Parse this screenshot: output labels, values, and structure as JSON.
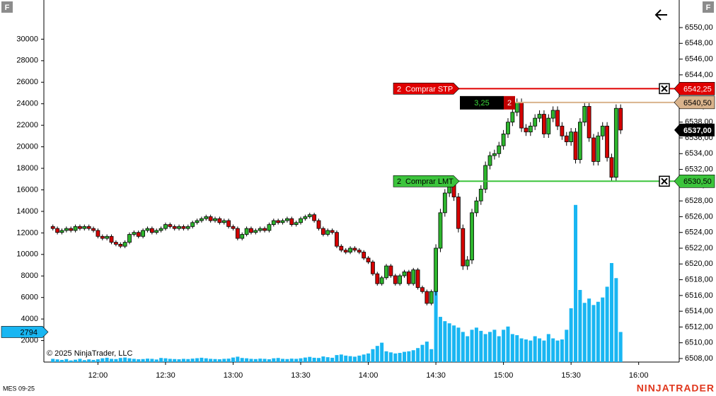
{
  "chart_data": {
    "type": "candlestick",
    "instrument": "MES 09-25",
    "copyright": "© 2025 NinjaTrader, LLC",
    "brand": "NINJATRADER",
    "buttons": [
      "F",
      "F"
    ],
    "up_color": "#2db52d",
    "down_color": "#d40000",
    "volume_color": "#19b6f2",
    "x": [
      "11:40",
      "11:42",
      "11:44",
      "11:46",
      "11:48",
      "11:50",
      "11:52",
      "11:54",
      "11:56",
      "11:58",
      "12:00",
      "12:02",
      "12:04",
      "12:06",
      "12:08",
      "12:10",
      "12:12",
      "12:14",
      "12:16",
      "12:18",
      "12:20",
      "12:22",
      "12:24",
      "12:26",
      "12:28",
      "12:30",
      "12:32",
      "12:34",
      "12:36",
      "12:38",
      "12:40",
      "12:42",
      "12:44",
      "12:46",
      "12:48",
      "12:50",
      "12:52",
      "12:54",
      "12:56",
      "12:58",
      "13:00",
      "13:02",
      "13:04",
      "13:06",
      "13:08",
      "13:10",
      "13:12",
      "13:14",
      "13:16",
      "13:18",
      "13:20",
      "13:22",
      "13:24",
      "13:26",
      "13:28",
      "13:30",
      "13:32",
      "13:34",
      "13:36",
      "13:38",
      "13:40",
      "13:42",
      "13:44",
      "13:46",
      "13:48",
      "13:50",
      "13:52",
      "13:54",
      "13:56",
      "13:58",
      "14:00",
      "14:02",
      "14:04",
      "14:06",
      "14:08",
      "14:10",
      "14:12",
      "14:14",
      "14:16",
      "14:18",
      "14:20",
      "14:22",
      "14:24",
      "14:26",
      "14:28",
      "14:30",
      "14:32",
      "14:34",
      "14:36",
      "14:38",
      "14:40",
      "14:42",
      "14:44",
      "14:46",
      "14:48",
      "14:50",
      "14:52",
      "14:54",
      "14:56",
      "14:58",
      "15:00",
      "15:02",
      "15:04",
      "15:06",
      "15:08",
      "15:10",
      "15:12",
      "15:14",
      "15:16",
      "15:18",
      "15:20",
      "15:22",
      "15:24",
      "15:26",
      "15:28",
      "15:30",
      "15:32",
      "15:34",
      "15:36",
      "15:38",
      "15:40",
      "15:42",
      "15:44",
      "15:46",
      "15:48",
      "15:50",
      "15:52"
    ],
    "open": [
      6524.75,
      6524.5,
      6524,
      6524.25,
      6524.5,
      6524.25,
      6524.75,
      6524.5,
      6524.75,
      6524.5,
      6524.25,
      6523.5,
      6523.25,
      6523.5,
      6522.75,
      6522.5,
      6522.25,
      6522.75,
      6523.75,
      6524,
      6523.5,
      6524.25,
      6524.5,
      6524,
      6524.25,
      6524.5,
      6525,
      6524.75,
      6524.5,
      6524.75,
      6524.5,
      6524.75,
      6525.25,
      6525.5,
      6525.75,
      6526,
      6525.5,
      6525.75,
      6525.25,
      6525.5,
      6524.75,
      6524.5,
      6523.25,
      6523.75,
      6524.5,
      6524,
      6524.25,
      6524.5,
      6524.25,
      6525,
      6525.5,
      6525.25,
      6525.5,
      6525.75,
      6525,
      6525.25,
      6525.75,
      6526,
      6526.25,
      6525.5,
      6524.5,
      6523.75,
      6524.25,
      6524,
      6522.25,
      6521.75,
      6521.5,
      6522,
      6521.75,
      6521.5,
      6520.75,
      6520.25,
      6518.75,
      6517.5,
      6518.25,
      6519.75,
      6518.5,
      6517.5,
      6518.5,
      6519,
      6517.5,
      6519.25,
      6517,
      6516.5,
      6515,
      6516.5,
      6522,
      6526.5,
      6529,
      6530.25,
      6528.5,
      6524.5,
      6519.75,
      6520.5,
      6526.5,
      6528,
      6529.5,
      6532.5,
      6533.75,
      6534,
      6535,
      6536.5,
      6538,
      6539.25,
      6540.5,
      6537.25,
      6536.75,
      6537.5,
      6538.5,
      6539,
      6536.5,
      6538.5,
      6539.5,
      6537.5,
      6536.25,
      6535.5,
      6536.75,
      6533.25,
      6538,
      6540,
      6536,
      6533,
      6536.25,
      6537.5,
      6533.5,
      6531,
      6539.75
    ],
    "high": [
      6525,
      6524.75,
      6524.5,
      6524.75,
      6524.75,
      6525,
      6525,
      6525,
      6525,
      6524.75,
      6524.5,
      6523.75,
      6523.75,
      6523.75,
      6523,
      6522.75,
      6523,
      6524,
      6524.25,
      6524.25,
      6524.5,
      6524.75,
      6524.75,
      6524.5,
      6524.75,
      6525.25,
      6525.25,
      6525,
      6525,
      6525,
      6525,
      6525.5,
      6525.75,
      6526,
      6526.25,
      6526.25,
      6526,
      6526,
      6525.75,
      6525.75,
      6525,
      6524.75,
      6524,
      6524.75,
      6524.75,
      6524.5,
      6524.75,
      6524.75,
      6525.25,
      6525.75,
      6525.75,
      6525.75,
      6526,
      6526,
      6525.5,
      6526,
      6526.25,
      6526.5,
      6526.5,
      6525.75,
      6524.75,
      6524.5,
      6524.5,
      6524.25,
      6522.5,
      6522,
      6522.25,
      6522.25,
      6522,
      6521.75,
      6521,
      6520.5,
      6519,
      6518.5,
      6520,
      6520,
      6518.75,
      6518.75,
      6519.25,
      6519.25,
      6519.5,
      6519.5,
      6517.25,
      6516.75,
      6516.75,
      6522.5,
      6527,
      6529.5,
      6530.75,
      6530.75,
      6529,
      6525,
      6521,
      6527,
      6528.5,
      6530,
      6533,
      6534.25,
      6534.5,
      6535.5,
      6537,
      6538.5,
      6539.75,
      6541,
      6541,
      6537.75,
      6538,
      6539,
      6539.5,
      6539.5,
      6539,
      6540,
      6540,
      6538,
      6536.75,
      6537.25,
      6537.25,
      6538.5,
      6540.5,
      6540.5,
      6536.5,
      6536.75,
      6538,
      6538,
      6534,
      6540.25,
      6540.25
    ],
    "low": [
      6524.25,
      6523.75,
      6523.75,
      6524,
      6524,
      6524,
      6524.25,
      6524.25,
      6524.25,
      6524,
      6523.25,
      6523,
      6523,
      6522.5,
      6522.25,
      6522,
      6522,
      6522.5,
      6523.5,
      6523.25,
      6523.25,
      6524,
      6523.75,
      6523.75,
      6524,
      6524.25,
      6524.5,
      6524.25,
      6524.25,
      6524.25,
      6524.25,
      6524.5,
      6525,
      6525.25,
      6525.5,
      6525.25,
      6525.25,
      6525,
      6525,
      6524.5,
      6524.25,
      6523,
      6523,
      6523.5,
      6523.75,
      6523.75,
      6524,
      6524,
      6524,
      6524.75,
      6525,
      6525,
      6525.25,
      6524.75,
      6524.75,
      6525,
      6525.5,
      6525.75,
      6525.25,
      6524.25,
      6523.5,
      6523.5,
      6523.75,
      6522,
      6521.5,
      6521.25,
      6521.25,
      6521.5,
      6521.25,
      6520.5,
      6520,
      6518.5,
      6517.25,
      6517.25,
      6518,
      6518.25,
      6517.25,
      6517.25,
      6518.25,
      6517.25,
      6517.25,
      6516.75,
      6516.25,
      6514.75,
      6514.75,
      6516,
      6521.5,
      6526,
      6528.5,
      6528,
      6524,
      6519.25,
      6519.25,
      6520,
      6526,
      6527.5,
      6529,
      6532,
      6533.25,
      6533.5,
      6534.5,
      6536,
      6537.5,
      6538.75,
      6536.75,
      6536.25,
      6536.25,
      6537,
      6538,
      6536,
      6536,
      6538,
      6537,
      6535.75,
      6535,
      6535,
      6532.75,
      6532.75,
      6537.5,
      6535.5,
      6532.5,
      6532.5,
      6535.75,
      6533,
      6530.5,
      6530.5,
      6536.5
    ],
    "close": [
      6524.5,
      6524,
      6524.25,
      6524.5,
      6524.25,
      6524.75,
      6524.5,
      6524.75,
      6524.5,
      6524.25,
      6523.5,
      6523.25,
      6523.5,
      6522.75,
      6522.5,
      6522.25,
      6522.75,
      6523.75,
      6524,
      6523.5,
      6524.25,
      6524.5,
      6524,
      6524.25,
      6524.5,
      6525,
      6524.75,
      6524.5,
      6524.75,
      6524.5,
      6524.75,
      6525.25,
      6525.5,
      6525.75,
      6526,
      6525.5,
      6525.75,
      6525.25,
      6525.5,
      6524.75,
      6524.5,
      6523.25,
      6523.75,
      6524.5,
      6524,
      6524.25,
      6524.5,
      6524.25,
      6525,
      6525.5,
      6525.25,
      6525.5,
      6525.75,
      6525,
      6525.25,
      6525.75,
      6526,
      6526.25,
      6525.5,
      6524.5,
      6523.75,
      6524.25,
      6524,
      6522.25,
      6521.75,
      6521.5,
      6522,
      6521.75,
      6521.5,
      6520.75,
      6520.25,
      6518.75,
      6517.5,
      6518.25,
      6519.75,
      6518.5,
      6517.5,
      6518.5,
      6519,
      6517.5,
      6519.25,
      6517,
      6516.5,
      6515,
      6516.5,
      6522,
      6526.5,
      6529,
      6530.25,
      6528.5,
      6524.5,
      6519.75,
      6520.5,
      6526.5,
      6528,
      6529.5,
      6532.5,
      6533.75,
      6534,
      6535,
      6536.5,
      6538,
      6539.25,
      6540.5,
      6537.25,
      6536.75,
      6537.5,
      6538.5,
      6539,
      6536.5,
      6538.5,
      6539.5,
      6537.5,
      6536.25,
      6535.5,
      6536.75,
      6533.25,
      6538,
      6540,
      6536,
      6533,
      6536.25,
      6537.5,
      6533.5,
      6531,
      6539.75,
      6537
    ],
    "volume": [
      300,
      250,
      200,
      280,
      150,
      220,
      300,
      180,
      250,
      200,
      260,
      350,
      400,
      300,
      280,
      380,
      420,
      350,
      300,
      260,
      280,
      320,
      300,
      240,
      380,
      350,
      300,
      280,
      260,
      300,
      280,
      320,
      360,
      400,
      350,
      300,
      280,
      260,
      300,
      320,
      420,
      500,
      380,
      350,
      300,
      280,
      320,
      300,
      260,
      350,
      380,
      300,
      280,
      320,
      300,
      350,
      420,
      480,
      400,
      380,
      520,
      450,
      400,
      650,
      700,
      600,
      550,
      500,
      600,
      700,
      800,
      1200,
      1500,
      1800,
      1000,
      900,
      800,
      850,
      950,
      1000,
      1100,
      1300,
      1600,
      1900,
      1200,
      10600,
      4200,
      3800,
      3600,
      3400,
      3200,
      2800,
      2400,
      3000,
      3200,
      2900,
      2600,
      2800,
      3000,
      2400,
      3000,
      3300,
      2600,
      2500,
      2200,
      2100,
      2000,
      2400,
      2200,
      2000,
      2600,
      2200,
      2000,
      2100,
      3000,
      5000,
      14600,
      6700,
      5500,
      5900,
      5300,
      5600,
      6000,
      7000,
      9200,
      7800,
      2794
    ],
    "xlim": [
      "11:36",
      "16:18"
    ],
    "xticks": [
      "12:00",
      "12:30",
      "13:00",
      "13:30",
      "14:00",
      "14:30",
      "15:00",
      "15:30",
      "16:00"
    ],
    "ylim": [
      6507.55,
      6553.5
    ],
    "yticks": [
      {
        "value": 6508,
        "label": "6508,00"
      },
      {
        "value": 6510,
        "label": "6510,00"
      },
      {
        "value": 6512,
        "label": "6512,00"
      },
      {
        "value": 6514,
        "label": "6514,00"
      },
      {
        "value": 6516,
        "label": "6516,00"
      },
      {
        "value": 6518,
        "label": "6518,00"
      },
      {
        "value": 6520,
        "label": "6520,00"
      },
      {
        "value": 6522,
        "label": "6522,00"
      },
      {
        "value": 6524,
        "label": "6524,00"
      },
      {
        "value": 6526,
        "label": "6526,00"
      },
      {
        "value": 6528,
        "label": "6528,00"
      },
      {
        "value": 6530,
        "label": "6530,00"
      },
      {
        "value": 6532,
        "label": "6532,00"
      },
      {
        "value": 6534,
        "label": "6534,00"
      },
      {
        "value": 6536,
        "label": "6536,00"
      },
      {
        "value": 6538,
        "label": "6538,00"
      },
      {
        "value": 6540,
        "label": "6540,00"
      },
      {
        "value": 6542,
        "label": "6542,00"
      },
      {
        "value": 6544,
        "label": "6544,00"
      },
      {
        "value": 6546,
        "label": "6546,00"
      },
      {
        "value": 6548,
        "label": "6548,00"
      },
      {
        "value": 6550,
        "label": "6550,00"
      }
    ],
    "y2lim": [
      0,
      33640
    ],
    "y2ticks": [
      2000,
      4000,
      6000,
      8000,
      10000,
      12000,
      14000,
      16000,
      18000,
      20000,
      22000,
      24000,
      26000,
      28000,
      30000
    ],
    "last_volume": 2794,
    "last_price": {
      "value": 6537,
      "label": "6537,00"
    },
    "position": {
      "pnl": "3,25",
      "qty": 2,
      "price": {
        "value": 6540.5,
        "label": "6540,50"
      },
      "color": "#d9b38c"
    },
    "orders": [
      {
        "qty": 2,
        "label": "Comprar STP",
        "price": {
          "value": 6542.25,
          "label": "6542,25"
        },
        "color": "#e00000"
      },
      {
        "qty": 2,
        "label": "Comprar LMT",
        "price": {
          "value": 6530.5,
          "label": "6530,50"
        },
        "color": "#3cc43c"
      }
    ]
  }
}
